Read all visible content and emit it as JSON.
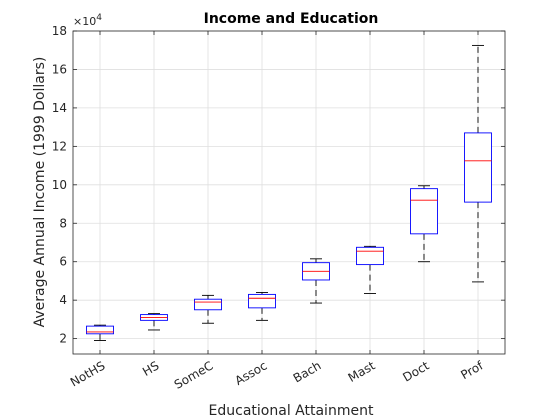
{
  "chart_data": {
    "type": "box",
    "title": "Income and Education",
    "xlabel": "Educational Attainment",
    "ylabel": "Average Annual Income  (1999 Dollars)",
    "y_exponent_label": "×10",
    "y_exponent_power": "4",
    "ylim": [
      1.2,
      18
    ],
    "yticks": [
      2,
      4,
      6,
      8,
      10,
      12,
      14,
      16,
      18
    ],
    "categories": [
      "NotHS",
      "HS",
      "SomeC",
      "Assoc",
      "Bach",
      "Mast",
      "Doct",
      "Prof"
    ],
    "boxes": [
      {
        "min": 1.9,
        "q1": 2.25,
        "median": 2.35,
        "q3": 2.65,
        "max": 2.7
      },
      {
        "min": 2.45,
        "q1": 2.95,
        "median": 3.1,
        "q3": 3.25,
        "max": 3.3
      },
      {
        "min": 2.8,
        "q1": 3.5,
        "median": 3.9,
        "q3": 4.05,
        "max": 4.25
      },
      {
        "min": 2.95,
        "q1": 3.6,
        "median": 4.1,
        "q3": 4.3,
        "max": 4.4
      },
      {
        "min": 3.85,
        "q1": 5.05,
        "median": 5.5,
        "q3": 5.95,
        "max": 6.15
      },
      {
        "min": 4.35,
        "q1": 5.85,
        "median": 6.55,
        "q3": 6.75,
        "max": 6.8
      },
      {
        "min": 6.0,
        "q1": 7.45,
        "median": 9.2,
        "q3": 9.8,
        "max": 9.95
      },
      {
        "min": 4.95,
        "q1": 9.1,
        "median": 11.25,
        "q3": 12.7,
        "max": 17.25
      }
    ],
    "grid": true,
    "colors": {
      "box": "#0000ff",
      "median": "#ff0000",
      "whisker": "#000000",
      "grid": "#dfdfdf",
      "axis": "#262626"
    }
  }
}
